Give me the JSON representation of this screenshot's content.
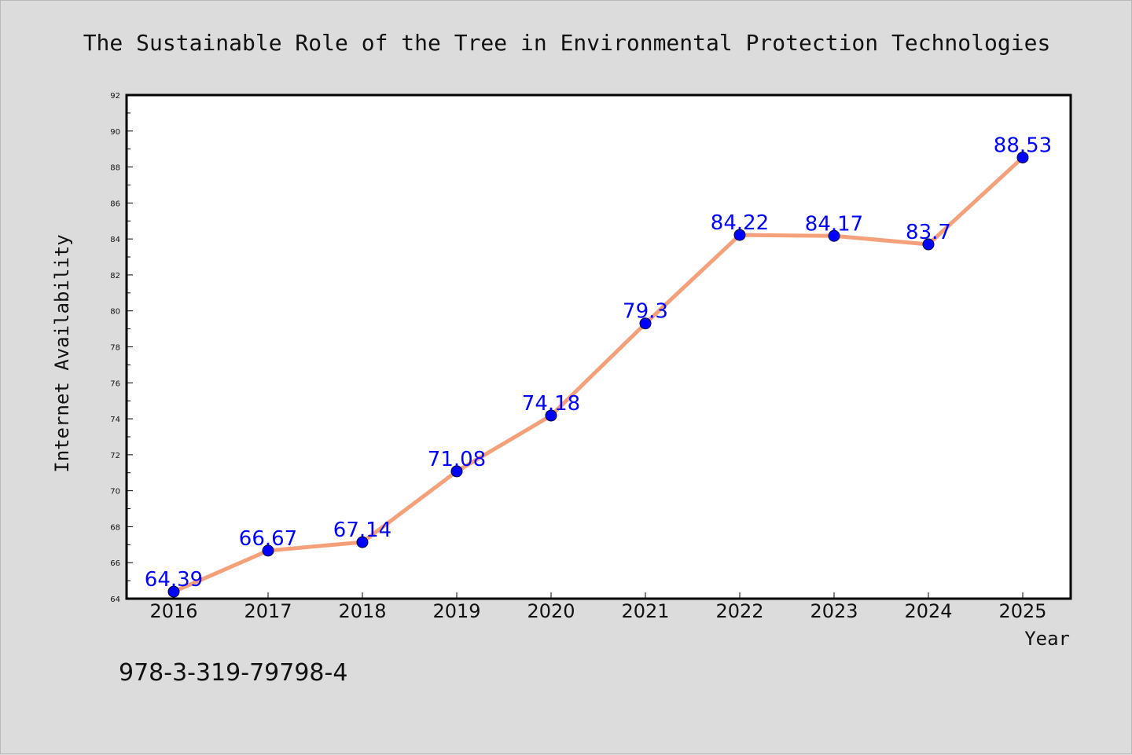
{
  "chart_data": {
    "type": "line",
    "title": "The Sustainable Role of the Tree in Environmental Protection Technologies",
    "xlabel": "Year",
    "ylabel": "Internet Availability",
    "categories": [
      "2016",
      "2017",
      "2018",
      "2019",
      "2020",
      "2021",
      "2022",
      "2023",
      "2024",
      "2025"
    ],
    "series": [
      {
        "values": [
          64.39,
          66.67,
          67.14,
          71.08,
          74.18,
          79.3,
          84.22,
          84.17,
          83.7,
          88.53
        ],
        "labels": [
          "64.39",
          "66.67",
          "67.14",
          "71.08",
          "74.18",
          "79.3",
          "84.22",
          "84.17",
          "83.7",
          "88.53"
        ],
        "line_color": "#f4a07a",
        "marker_color": "#0000ff"
      }
    ],
    "ylim": [
      64,
      92
    ],
    "yticks": [
      "64",
      "66",
      "68",
      "70",
      "72",
      "74",
      "76",
      "78",
      "80",
      "82",
      "84",
      "86",
      "88",
      "90",
      "92"
    ],
    "grid": false,
    "legend": "none"
  },
  "footer": {
    "isbn": "978-3-319-79798-4"
  },
  "colors": {
    "background": "#dcdcdc",
    "plot_background": "#ffffff",
    "data_label": "#0000ff"
  }
}
